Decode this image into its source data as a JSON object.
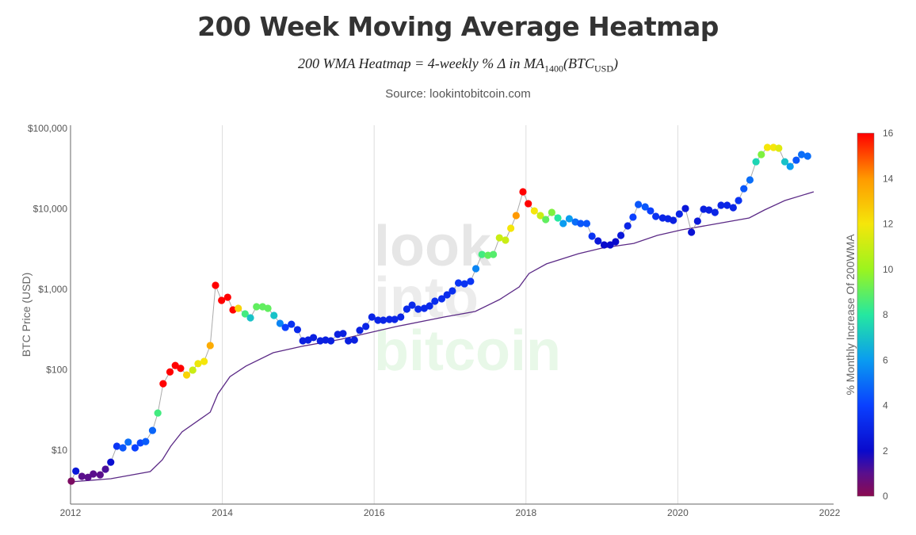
{
  "header": {
    "title": "200 Week Moving Average Heatmap",
    "formula": "200 WMA Heatmap = 4-weekly % Δ in MA1400(BTCUSD)",
    "source": "Source: lookintobitcoin.com"
  },
  "watermark": [
    "look",
    "into",
    "bitcoin"
  ],
  "colors": {
    "price_line": "#aaaaaa",
    "wma_line": "#5b2a86",
    "grid": "#dddddd"
  },
  "chart_data": {
    "type": "scatter",
    "title": "200 Week Moving Average Heatmap",
    "xlabel": "",
    "ylabel": "BTC Price (USD)",
    "xlim": [
      2012,
      2022
    ],
    "ylim": [
      2.1,
      100000
    ],
    "y_scale": "log",
    "x_ticks": [
      "2012",
      "2014",
      "2016",
      "2018",
      "2020",
      "2022"
    ],
    "y_ticks": [
      {
        "value": 10,
        "label": "$10"
      },
      {
        "value": 100,
        "label": "$100"
      },
      {
        "value": 1000,
        "label": "$1,000"
      },
      {
        "value": 10000,
        "label": "$10,000"
      },
      {
        "value": 100000,
        "label": "$100,000"
      }
    ],
    "grid": "vertical",
    "colorbar": {
      "title": "% Monthly Increase Of 200WMA",
      "range": [
        0,
        16
      ],
      "ticks": [
        "0",
        "2",
        "4",
        "6",
        "8",
        "10",
        "12",
        "14",
        "16"
      ],
      "stops": [
        [
          0,
          "#8b0a50"
        ],
        [
          1,
          "#5a0f8c"
        ],
        [
          2,
          "#0a0acc"
        ],
        [
          4,
          "#0a40ff"
        ],
        [
          6,
          "#0a9cf0"
        ],
        [
          8,
          "#25e8a0"
        ],
        [
          10,
          "#9cf41e"
        ],
        [
          12,
          "#f5e60a"
        ],
        [
          14,
          "#ff9900"
        ],
        [
          16,
          "#ff0000"
        ]
      ]
    },
    "series": [
      {
        "type": "markers",
        "fields": [
          "year",
          "price_usd",
          "pct_monthly_increase_200wma"
        ],
        "points": [
          [
            2012.01,
            4.13,
            0.3
          ],
          [
            2012.07,
            5.5,
            2.5
          ],
          [
            2012.15,
            4.73,
            1
          ],
          [
            2012.23,
            4.6,
            1
          ],
          [
            2012.3,
            5.06,
            1
          ],
          [
            2012.39,
            4.94,
            1
          ],
          [
            2012.46,
            5.8,
            1.2
          ],
          [
            2012.53,
            7.1,
            2.2
          ],
          [
            2012.61,
            11.2,
            3.6
          ],
          [
            2012.69,
            10.7,
            4.5
          ],
          [
            2012.76,
            12.6,
            5
          ],
          [
            2012.85,
            10.7,
            4
          ],
          [
            2012.92,
            12.3,
            4.2
          ],
          [
            2012.99,
            12.8,
            4.6
          ],
          [
            2013.08,
            17.6,
            4.8
          ],
          [
            2013.15,
            29,
            8.5
          ],
          [
            2013.22,
            67,
            16
          ],
          [
            2013.31,
            94,
            16
          ],
          [
            2013.38,
            113,
            16
          ],
          [
            2013.45,
            104,
            16
          ],
          [
            2013.53,
            86,
            12.5
          ],
          [
            2013.61,
            99,
            11
          ],
          [
            2013.68,
            119,
            11.8
          ],
          [
            2013.76,
            127,
            12
          ],
          [
            2013.84,
            200,
            13.5
          ],
          [
            2013.91,
            1120,
            16
          ],
          [
            2013.99,
            728,
            16
          ],
          [
            2014.07,
            796,
            16
          ],
          [
            2014.14,
            555,
            16
          ],
          [
            2014.21,
            580,
            12.5
          ],
          [
            2014.3,
            495,
            8.5
          ],
          [
            2014.37,
            442,
            7
          ],
          [
            2014.45,
            607,
            9
          ],
          [
            2014.53,
            607,
            9
          ],
          [
            2014.6,
            580,
            9
          ],
          [
            2014.68,
            473,
            7
          ],
          [
            2014.76,
            377,
            5.5
          ],
          [
            2014.83,
            336,
            4
          ],
          [
            2014.91,
            368,
            3.5
          ],
          [
            2014.99,
            315,
            3.2
          ],
          [
            2015.06,
            229,
            2.8
          ],
          [
            2015.13,
            234,
            2.8
          ],
          [
            2015.2,
            251,
            2.8
          ],
          [
            2015.29,
            229,
            2.8
          ],
          [
            2015.36,
            234,
            2.8
          ],
          [
            2015.43,
            229,
            2.8
          ],
          [
            2015.52,
            275,
            2.8
          ],
          [
            2015.59,
            282,
            2.8
          ],
          [
            2015.66,
            229,
            2.8
          ],
          [
            2015.74,
            234,
            2.8
          ],
          [
            2015.81,
            309,
            2.9
          ],
          [
            2015.89,
            345,
            3
          ],
          [
            2015.97,
            452,
            3
          ],
          [
            2016.05,
            413,
            3
          ],
          [
            2016.12,
            413,
            3
          ],
          [
            2016.2,
            422,
            3
          ],
          [
            2016.27,
            422,
            3
          ],
          [
            2016.35,
            452,
            3
          ],
          [
            2016.43,
            567,
            3.2
          ],
          [
            2016.5,
            635,
            3.2
          ],
          [
            2016.58,
            567,
            3.2
          ],
          [
            2016.66,
            580,
            3.2
          ],
          [
            2016.73,
            621,
            3.2
          ],
          [
            2016.8,
            711,
            3.3
          ],
          [
            2016.89,
            762,
            3.3
          ],
          [
            2016.96,
            853,
            3.3
          ],
          [
            2017.03,
            955,
            3.4
          ],
          [
            2017.11,
            1200,
            3.6
          ],
          [
            2017.19,
            1170,
            3.5
          ],
          [
            2017.27,
            1256,
            3.6
          ],
          [
            2017.34,
            1803,
            5.5
          ],
          [
            2017.42,
            2710,
            8.5
          ],
          [
            2017.5,
            2650,
            9
          ],
          [
            2017.57,
            2710,
            8.8
          ],
          [
            2017.65,
            4365,
            11
          ],
          [
            2017.73,
            4080,
            11
          ],
          [
            2017.8,
            5740,
            12
          ],
          [
            2017.87,
            8250,
            14
          ],
          [
            2017.96,
            16300,
            16
          ],
          [
            2018.03,
            11600,
            16
          ],
          [
            2018.11,
            9440,
            12
          ],
          [
            2018.19,
            8250,
            11
          ],
          [
            2018.26,
            7360,
            9
          ],
          [
            2018.34,
            9030,
            9.5
          ],
          [
            2018.42,
            7710,
            8
          ],
          [
            2018.49,
            6580,
            6
          ],
          [
            2018.57,
            7540,
            6
          ],
          [
            2018.65,
            6870,
            5
          ],
          [
            2018.72,
            6580,
            4.5
          ],
          [
            2018.8,
            6580,
            4.5
          ],
          [
            2018.87,
            4570,
            3.5
          ],
          [
            2018.95,
            3990,
            2.5
          ],
          [
            2019.03,
            3560,
            2
          ],
          [
            2019.11,
            3560,
            2
          ],
          [
            2019.18,
            3900,
            2
          ],
          [
            2019.25,
            4680,
            2.5
          ],
          [
            2019.34,
            6140,
            3
          ],
          [
            2019.41,
            7890,
            4
          ],
          [
            2019.48,
            11330,
            4.5
          ],
          [
            2019.57,
            10590,
            4.5
          ],
          [
            2019.64,
            9440,
            4
          ],
          [
            2019.71,
            8060,
            3.5
          ],
          [
            2019.8,
            7710,
            3
          ],
          [
            2019.87,
            7540,
            3
          ],
          [
            2019.94,
            7200,
            2.8
          ],
          [
            2020.02,
            8630,
            3
          ],
          [
            2020.1,
            10100,
            2.5
          ],
          [
            2020.18,
            5120,
            2.3
          ],
          [
            2020.26,
            7030,
            2.5
          ],
          [
            2020.34,
            9890,
            2.8
          ],
          [
            2020.41,
            9670,
            2.8
          ],
          [
            2020.49,
            9030,
            3
          ],
          [
            2020.57,
            11070,
            3
          ],
          [
            2020.65,
            11070,
            3
          ],
          [
            2020.73,
            10350,
            3
          ],
          [
            2020.8,
            12680,
            3.5
          ],
          [
            2020.87,
            17800,
            4.5
          ],
          [
            2020.95,
            22900,
            5
          ],
          [
            2021.03,
            38500,
            7.5
          ],
          [
            2021.1,
            47300,
            9.5
          ],
          [
            2021.18,
            58000,
            12
          ],
          [
            2021.26,
            58000,
            12
          ],
          [
            2021.33,
            56700,
            11.5
          ],
          [
            2021.41,
            38500,
            7
          ],
          [
            2021.48,
            33700,
            6
          ],
          [
            2021.56,
            40300,
            4.5
          ],
          [
            2021.63,
            47300,
            5
          ],
          [
            2021.71,
            45200,
            5
          ]
        ]
      },
      {
        "type": "line",
        "fields": [
          "year",
          "price_usd"
        ],
        "points": [
          [
            2012.0,
            4.04
          ],
          [
            2012.53,
            4.42
          ],
          [
            2013.05,
            5.42
          ],
          [
            2013.21,
            7.6
          ],
          [
            2013.32,
            11.2
          ],
          [
            2013.47,
            16.9
          ],
          [
            2013.84,
            29.7
          ],
          [
            2013.94,
            50
          ],
          [
            2014.1,
            82
          ],
          [
            2014.31,
            111
          ],
          [
            2014.67,
            163
          ],
          [
            2015.04,
            195
          ],
          [
            2015.56,
            239
          ],
          [
            2016.29,
            344
          ],
          [
            2016.92,
            452
          ],
          [
            2017.33,
            530
          ],
          [
            2017.65,
            745
          ],
          [
            2017.91,
            1070
          ],
          [
            2018.04,
            1570
          ],
          [
            2018.27,
            2070
          ],
          [
            2018.69,
            2770
          ],
          [
            2019.0,
            3250
          ],
          [
            2019.42,
            3720
          ],
          [
            2019.73,
            4680
          ],
          [
            2020.05,
            5480
          ],
          [
            2020.47,
            6430
          ],
          [
            2020.94,
            7710
          ],
          [
            2021.14,
            9660
          ],
          [
            2021.41,
            12680
          ],
          [
            2021.79,
            16300
          ]
        ]
      }
    ]
  }
}
